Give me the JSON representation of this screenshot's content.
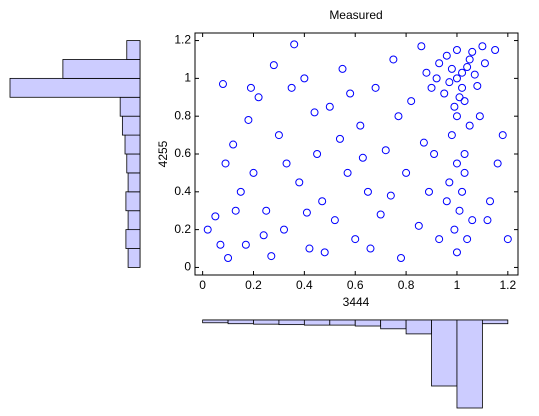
{
  "chart_data": [
    {
      "type": "scatter",
      "title": "Measured",
      "xlabel": "3444",
      "ylabel": "4255",
      "color": "#0000ff",
      "xlim": [
        -0.03,
        1.24
      ],
      "ylim": [
        -0.04,
        1.24
      ],
      "xticks": [
        0,
        0.2,
        0.4,
        0.6,
        0.8,
        1,
        1.2
      ],
      "yticks": [
        0,
        0.2,
        0.4,
        0.6,
        0.8,
        1,
        1.2
      ],
      "x": [
        1.0,
        1.02,
        0.98,
        1.05,
        0.95,
        1.03,
        1.07,
        0.93,
        1.0,
        1.1,
        0.97,
        1.04,
        1.01,
        0.96,
        1.08,
        0.99,
        1.06,
        0.92,
        1.02,
        1.11,
        0.9,
        1.0,
        1.05,
        0.98,
        1.03,
        1.0,
        0.97,
        1.02,
        1.01,
        0.99,
        1.04,
        1.0,
        1.06,
        0.96,
        1.03,
        1.15,
        1.18,
        1.2,
        0.86,
        0.88,
        0.02,
        0.05,
        0.08,
        0.1,
        0.12,
        0.15,
        0.17,
        0.2,
        0.22,
        0.25,
        0.27,
        0.3,
        0.32,
        0.35,
        0.38,
        0.4,
        0.42,
        0.45,
        0.47,
        0.5,
        0.52,
        0.55,
        0.57,
        0.6,
        0.62,
        0.65,
        0.68,
        0.7,
        0.72,
        0.75,
        0.78,
        0.8,
        0.82,
        0.85,
        0.87,
        0.89,
        0.18,
        0.28,
        0.36,
        0.44,
        0.58,
        0.66,
        0.74,
        0.33,
        0.13,
        0.07,
        0.24,
        0.48,
        0.63,
        0.77,
        0.54,
        0.41,
        0.19,
        0.09,
        0.93,
        0.91,
        1.13,
        1.16,
        1.09,
        1.12
      ],
      "y": [
        1.0,
        0.95,
        1.05,
        1.1,
        0.92,
        0.88,
        1.02,
        1.08,
        1.15,
        1.17,
        0.98,
        1.06,
        0.9,
        1.12,
        0.96,
        0.85,
        1.14,
        1.0,
        1.03,
        1.08,
        0.95,
        0.8,
        0.75,
        0.7,
        0.6,
        0.55,
        0.45,
        0.4,
        0.3,
        0.2,
        0.15,
        0.08,
        0.25,
        0.35,
        0.5,
        1.15,
        0.7,
        0.15,
        1.17,
        1.03,
        0.2,
        0.27,
        0.97,
        0.05,
        0.65,
        0.4,
        0.12,
        0.5,
        0.9,
        0.3,
        0.06,
        0.7,
        0.2,
        0.95,
        0.45,
        1.0,
        0.1,
        0.6,
        0.35,
        0.85,
        0.25,
        1.05,
        0.5,
        0.15,
        0.75,
        0.4,
        0.95,
        0.28,
        0.62,
        1.1,
        0.05,
        0.5,
        0.88,
        0.22,
        0.66,
        0.4,
        0.78,
        1.07,
        1.18,
        0.82,
        0.92,
        0.1,
        0.38,
        0.55,
        0.3,
        0.12,
        0.17,
        0.08,
        0.58,
        0.8,
        0.68,
        0.29,
        0.95,
        0.55,
        0.15,
        0.6,
        0.35,
        0.55,
        0.8,
        0.25
      ]
    },
    {
      "type": "histogram",
      "orientation": "horizontal",
      "color": "#ccccff",
      "bins": [
        0,
        0.1,
        0.2,
        0.3,
        0.4,
        0.5,
        0.6,
        0.7,
        0.8,
        0.9,
        1.0,
        1.1,
        1.2
      ],
      "values": [
        27,
        32,
        27,
        32,
        27,
        30,
        34,
        40,
        45,
        295,
        175,
        30
      ]
    },
    {
      "type": "histogram",
      "orientation": "vertical",
      "color": "#ccccff",
      "bins": [
        0,
        0.1,
        0.2,
        0.3,
        0.4,
        0.5,
        0.6,
        0.7,
        0.8,
        0.9,
        1.0,
        1.1,
        1.2
      ],
      "values": [
        12,
        16,
        18,
        20,
        22,
        22,
        26,
        38,
        60,
        285,
        380,
        16
      ]
    }
  ]
}
